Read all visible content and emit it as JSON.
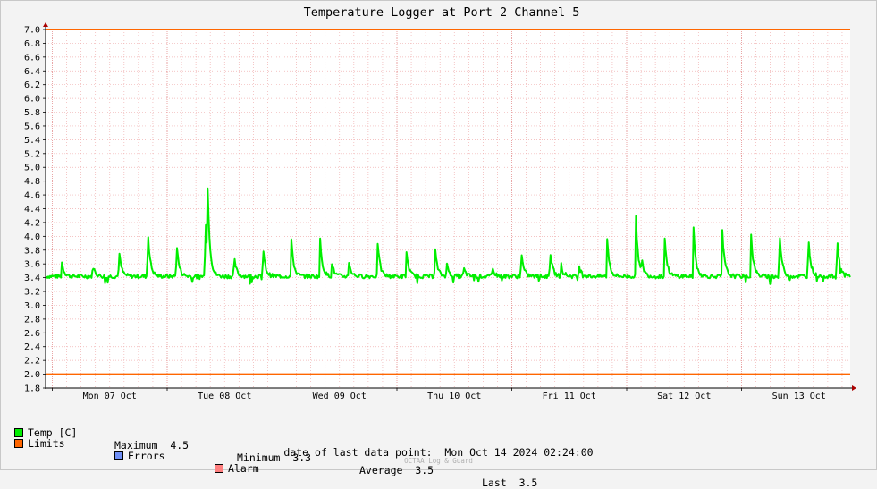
{
  "chart_data": {
    "type": "line",
    "title": "Temperature Logger at Port 2 Channel 5",
    "ylim": [
      1.8,
      7.0
    ],
    "yticks": [
      "7.0",
      "6.8",
      "6.6",
      "6.4",
      "6.2",
      "6.0",
      "5.8",
      "5.6",
      "5.4",
      "5.2",
      "5.0",
      "4.8",
      "4.6",
      "4.4",
      "4.2",
      "4.0",
      "3.8",
      "3.6",
      "3.4",
      "3.2",
      "3.0",
      "2.8",
      "2.6",
      "2.4",
      "2.2",
      "2.0",
      "1.8"
    ],
    "xlim": [
      0,
      7.0
    ],
    "xtick_labels": [
      "Mon 07 Oct",
      "Tue 08 Oct",
      "Wed 09 Oct",
      "Thu 10 Oct",
      "Fri 11 Oct",
      "Sat 12 Oct",
      "Sun 13 Oct"
    ],
    "limits": [
      2.0,
      7.0
    ],
    "baseline": 3.42,
    "spikes": [
      [
        0.08,
        3.66
      ],
      [
        0.35,
        3.62
      ],
      [
        0.58,
        3.82
      ],
      [
        0.83,
        4.17
      ],
      [
        1.08,
        3.98
      ],
      [
        1.33,
        4.48
      ],
      [
        1.35,
        4.45
      ],
      [
        1.58,
        3.74
      ],
      [
        1.83,
        3.93
      ],
      [
        2.08,
        3.97
      ],
      [
        2.33,
        3.98
      ],
      [
        2.43,
        3.65
      ],
      [
        2.58,
        3.66
      ],
      [
        2.83,
        3.98
      ],
      [
        3.08,
        3.84
      ],
      [
        3.33,
        3.88
      ],
      [
        3.43,
        3.64
      ],
      [
        3.58,
        3.55
      ],
      [
        3.83,
        3.55
      ],
      [
        4.08,
        3.82
      ],
      [
        4.33,
        3.88
      ],
      [
        4.43,
        3.6
      ],
      [
        4.58,
        3.6
      ],
      [
        4.83,
        3.97
      ],
      [
        5.08,
        4.3
      ],
      [
        5.13,
        3.62
      ],
      [
        5.33,
        4.02
      ],
      [
        5.58,
        4.18
      ],
      [
        5.83,
        4.17
      ],
      [
        6.08,
        4.13
      ],
      [
        6.33,
        4.1
      ],
      [
        6.58,
        4.05
      ],
      [
        6.83,
        4.06
      ]
    ],
    "series": [
      {
        "name": "Temp [C]",
        "color": "#00ee00"
      }
    ],
    "grid": true
  },
  "legend": {
    "temp_label": "Temp [C]",
    "max_label": "Maximum",
    "max_value": "4.5",
    "min_label": "Minimum",
    "min_value": "3.3",
    "avg_label": "Average",
    "avg_value": "3.5",
    "last_label": "Last",
    "last_value": "3.5",
    "limits_label": "Limits",
    "errors_label": "Errors",
    "alarm_label": "Alarm"
  },
  "footer": {
    "last_point": "date of last data point:  Mon Oct 14 2024 02:24:00",
    "credit": "OCTAA Log & Guard"
  },
  "colors": {
    "temp": "#00ee00",
    "limits": "#ff6600",
    "errors": "#6f8ff5",
    "alarm": "#ff7f7f"
  }
}
